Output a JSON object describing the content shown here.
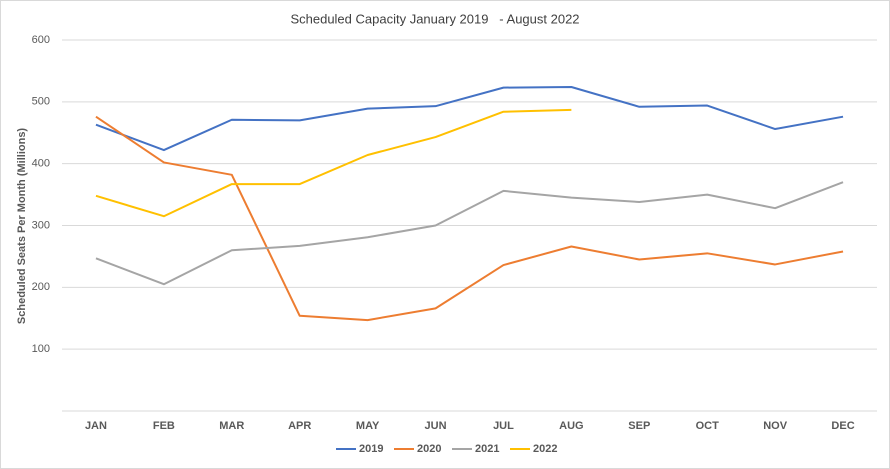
{
  "chart_data": {
    "type": "line",
    "title": "Scheduled Capacity January 2019   - August 2022",
    "y_label": "Scheduled Seats Per Month (Millions)",
    "categories": [
      "JAN",
      "FEB",
      "MAR",
      "APR",
      "MAY",
      "JUN",
      "JUL",
      "AUG",
      "SEP",
      "OCT",
      "NOV",
      "DEC"
    ],
    "series": [
      {
        "name": "2019",
        "color": "#4472c4",
        "values": [
          463,
          422,
          471,
          470,
          489,
          493,
          523,
          524,
          492,
          494,
          456,
          476
        ]
      },
      {
        "name": "2020",
        "color": "#ed7d31",
        "values": [
          476,
          402,
          382,
          154,
          147,
          166,
          236,
          266,
          245,
          255,
          237,
          258
        ]
      },
      {
        "name": "2021",
        "color": "#a5a5a5",
        "values": [
          247,
          205,
          260,
          267,
          281,
          300,
          356,
          345,
          338,
          350,
          328,
          370
        ]
      },
      {
        "name": "2022",
        "color": "#ffc000",
        "values": [
          348,
          315,
          367,
          367,
          414,
          443,
          484,
          487,
          null,
          null,
          null,
          null
        ]
      }
    ],
    "ylim": [
      0,
      600
    ],
    "yticks": [
      100,
      200,
      300,
      400,
      500,
      600
    ],
    "grid": true,
    "legend": "bottom"
  }
}
